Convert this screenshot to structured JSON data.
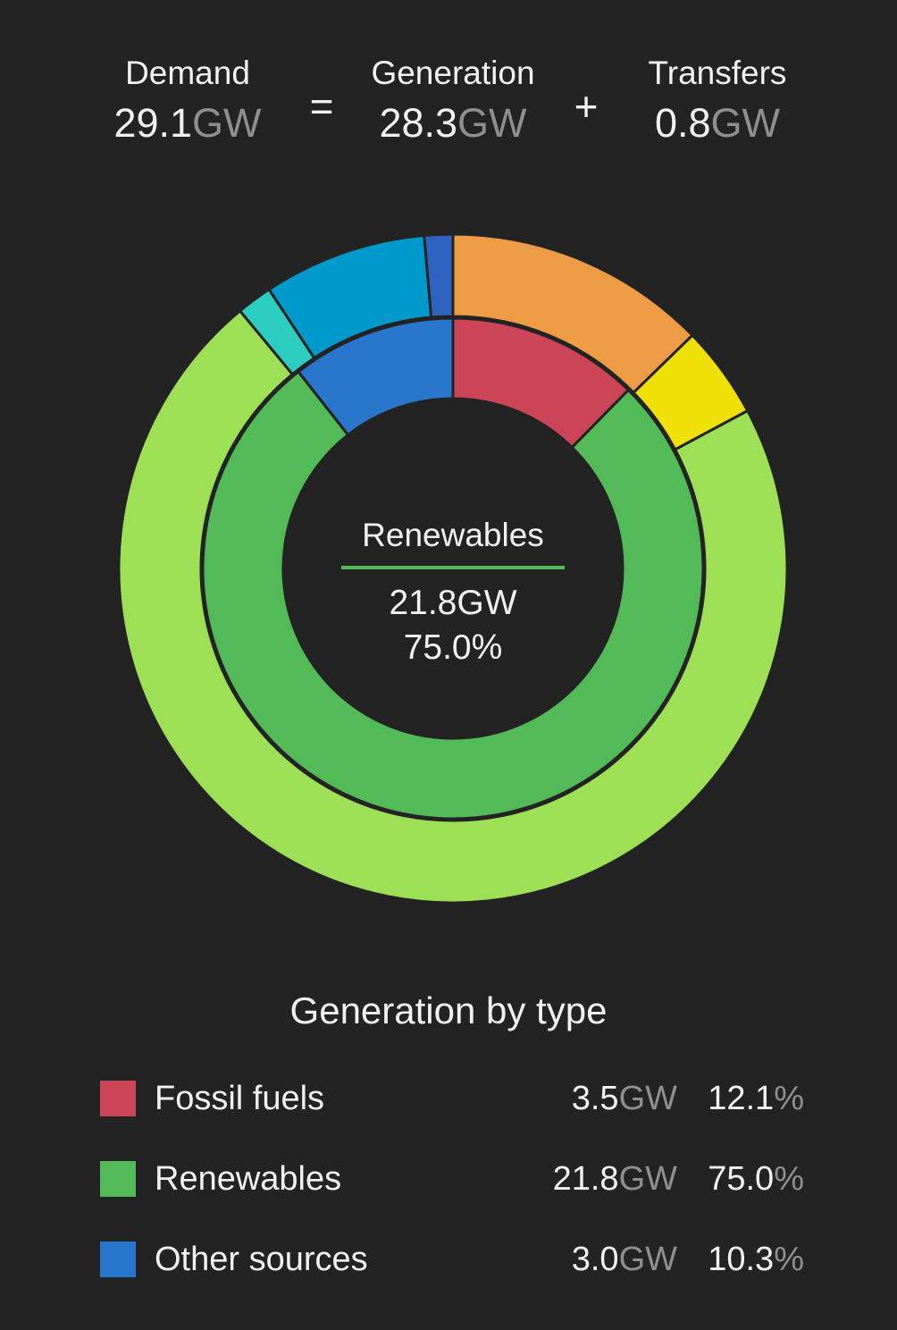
{
  "summary": {
    "demand": {
      "label": "Demand",
      "value": "29.1",
      "unit": "GW"
    },
    "equals": "=",
    "generation": {
      "label": "Generation",
      "value": "28.3",
      "unit": "GW"
    },
    "plus": "+",
    "transfers": {
      "label": "Transfers",
      "value": "0.8",
      "unit": "GW"
    }
  },
  "center": {
    "title": "Renewables",
    "value": "21.8GW",
    "percent": "75.0%",
    "accent": "#52ba57"
  },
  "legend": {
    "title": "Generation by type",
    "items": [
      {
        "name": "Fossil fuels",
        "gw": "3.5",
        "unit": "GW",
        "pct": "12.1",
        "pct_unit": "%",
        "color": "#cc4458"
      },
      {
        "name": "Renewables",
        "gw": "21.8",
        "unit": "GW",
        "pct": "75.0",
        "pct_unit": "%",
        "color": "#52ba57"
      },
      {
        "name": "Other sources",
        "gw": "3.0",
        "unit": "GW",
        "pct": "10.3",
        "pct_unit": "%",
        "color": "#2877cc"
      }
    ]
  },
  "chart_data": {
    "type": "pie",
    "style": "double-donut",
    "inner_ring": [
      {
        "name": "Fossil fuels",
        "value": 3.5,
        "color": "#cc4458"
      },
      {
        "name": "Renewables",
        "value": 21.8,
        "color": "#52ba57"
      },
      {
        "name": "Other sources",
        "value": 3.0,
        "color": "#2877cc"
      }
    ],
    "outer_ring": [
      {
        "value": 3.7,
        "color": "#ee9b45"
      },
      {
        "value": 1.3,
        "color": "#efe008"
      },
      {
        "value": 20.9,
        "color": "#9de055"
      },
      {
        "value": 0.5,
        "color": "#2ccdc1"
      },
      {
        "value": 2.3,
        "color": "#0099cc"
      },
      {
        "value": 0.4,
        "color": "#2f62c0"
      }
    ]
  }
}
